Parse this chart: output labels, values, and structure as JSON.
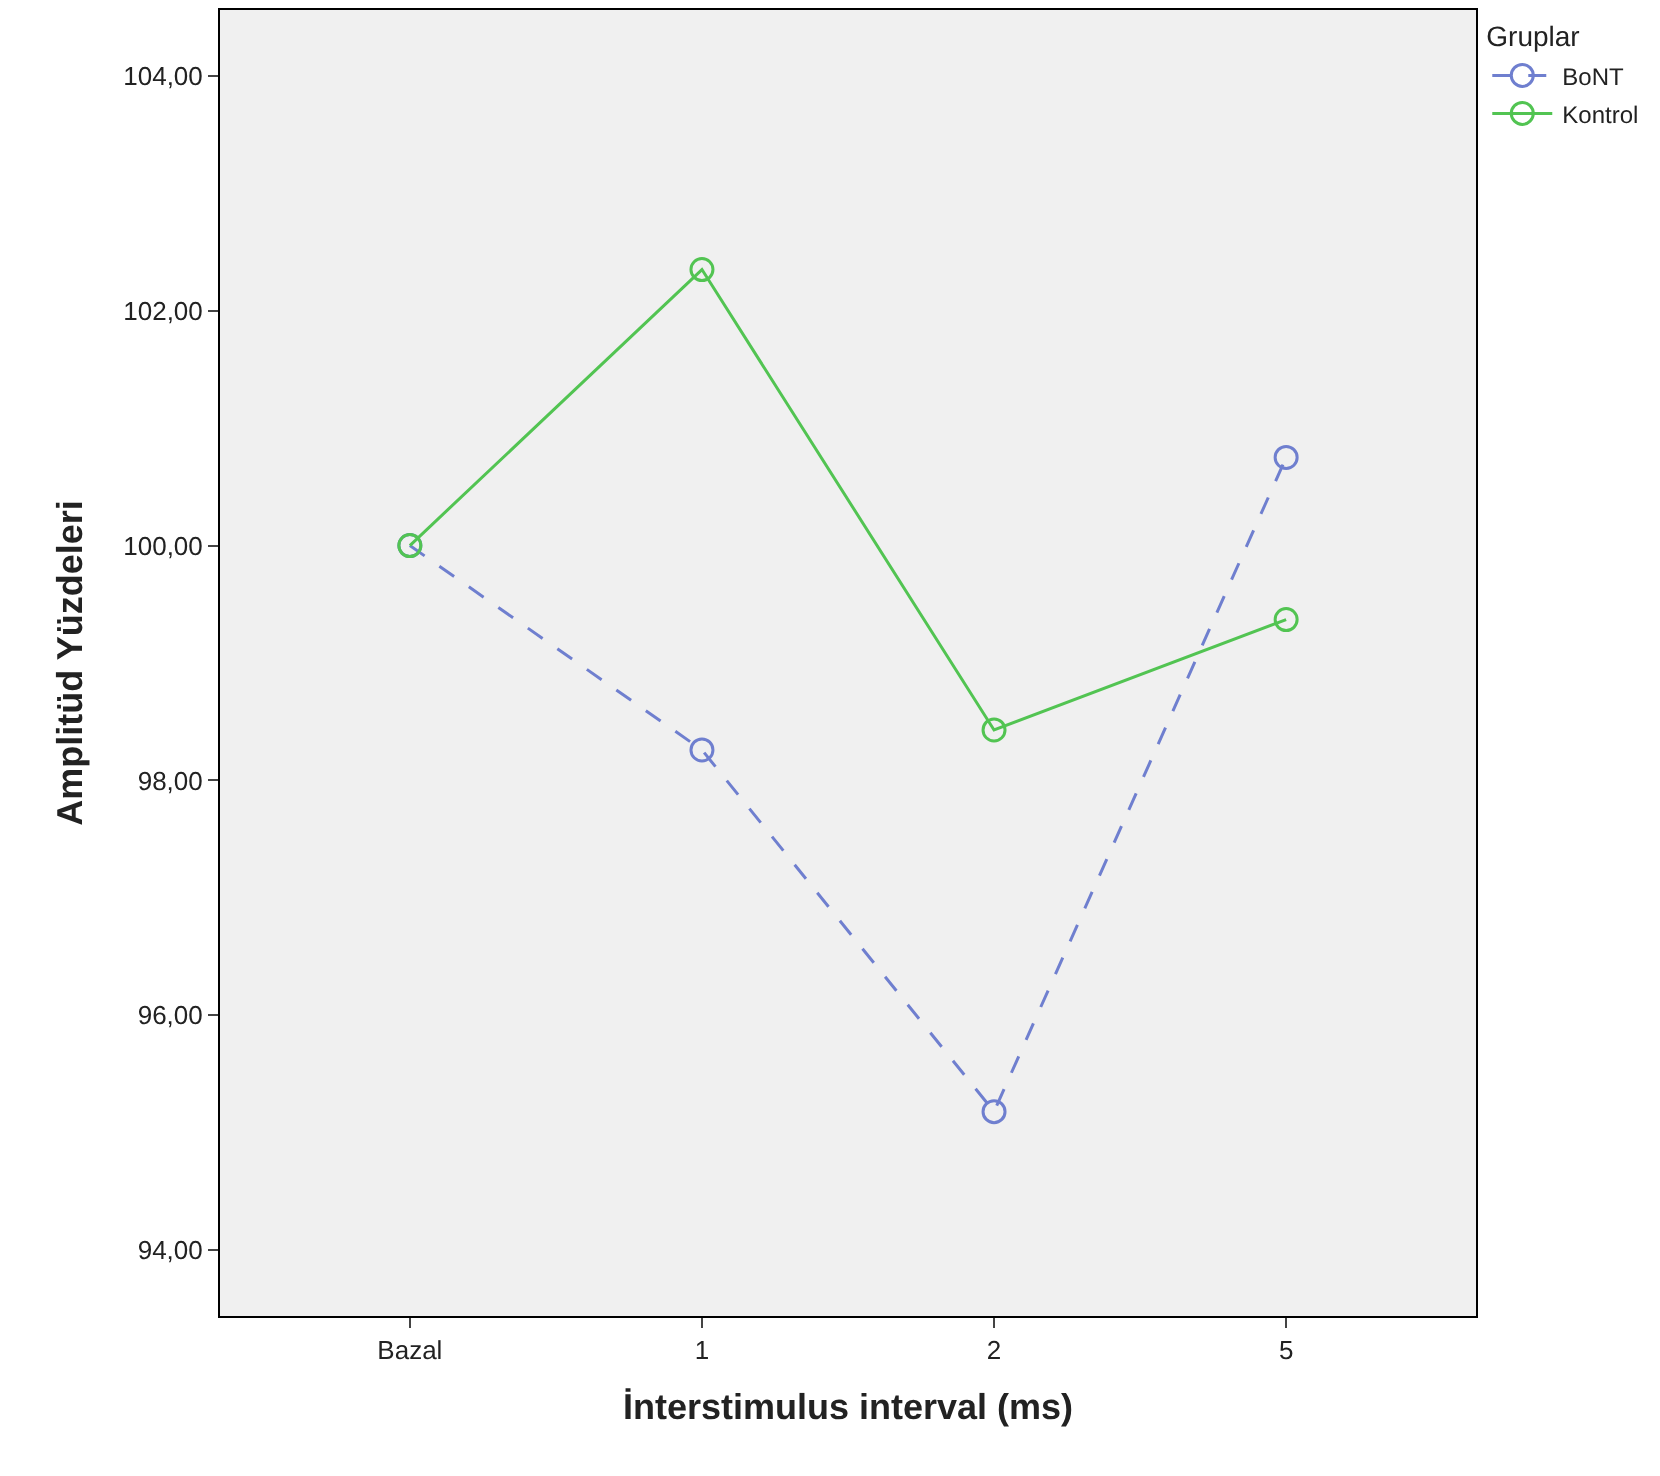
{
  "chart_data": {
    "type": "line",
    "xlabel": "İnterstimulus interval (ms)",
    "ylabel": "Amplitüd Yüzdeleri",
    "legend_title": "Gruplar",
    "categories": [
      "Bazal",
      "1",
      "2",
      "5"
    ],
    "series": [
      {
        "name": "BoNT",
        "color": "#6f7fcf",
        "values": [
          100.0,
          98.26,
          95.18,
          100.75
        ],
        "line_style": "dashed"
      },
      {
        "name": "Kontrol",
        "color": "#52c452",
        "values": [
          100.0,
          102.35,
          98.43,
          99.37
        ],
        "line_style": "solid"
      }
    ],
    "ylim": [
      93.44,
      104.56
    ],
    "yticks": [
      {
        "value": 94,
        "label": "94,00"
      },
      {
        "value": 96,
        "label": "96,00"
      },
      {
        "value": 98,
        "label": "98,00"
      },
      {
        "value": 100,
        "label": "100,00"
      },
      {
        "value": 102,
        "label": "102,00"
      },
      {
        "value": 104,
        "label": "104,00"
      }
    ],
    "grid": false,
    "legend": "top right",
    "marker": "circle"
  }
}
